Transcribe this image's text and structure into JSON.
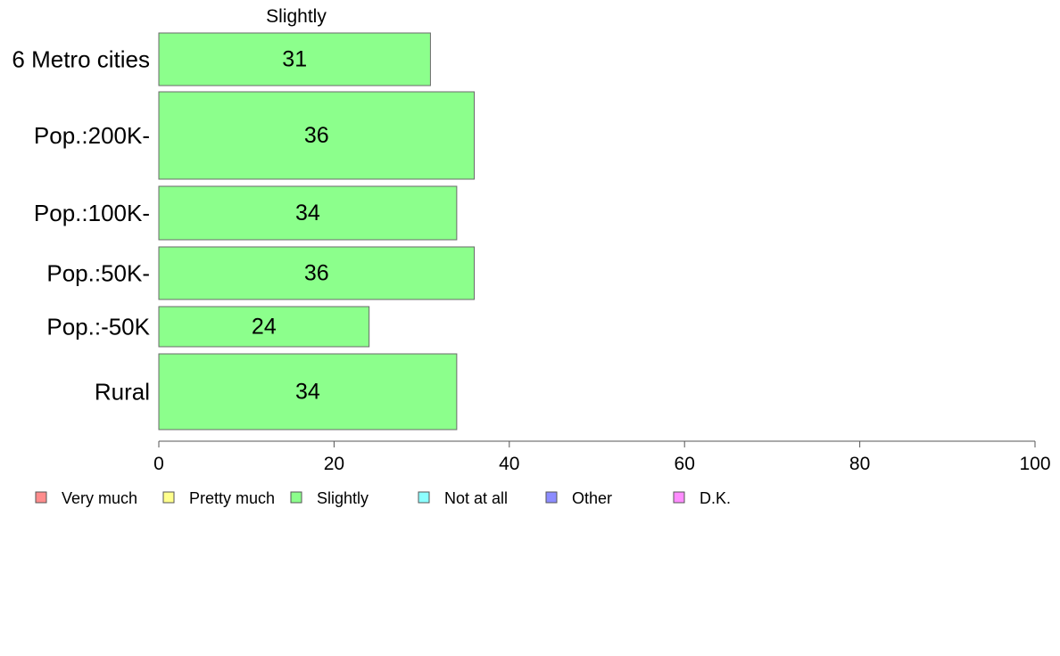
{
  "chart_data": {
    "type": "bar",
    "orientation": "horizontal",
    "title": "Slightly",
    "categories": [
      "6 Metro cities",
      "Pop.:200K-",
      "Pop.:100K-",
      "Pop.:50K-",
      "Pop.:-50K",
      "Rural"
    ],
    "values": [
      31,
      36,
      34,
      36,
      24,
      34
    ],
    "xlim": [
      0,
      100
    ],
    "x_ticks": [
      0,
      20,
      40,
      60,
      80,
      100
    ],
    "bar_color": "#8cff8c",
    "grid": false,
    "legend_position": "bottom",
    "legend": [
      {
        "label": "Very much",
        "color": "#ff8c8c"
      },
      {
        "label": "Pretty much",
        "color": "#ffff8c"
      },
      {
        "label": "Slightly",
        "color": "#8cff8c"
      },
      {
        "label": "Not at all",
        "color": "#8cffff"
      },
      {
        "label": "Other",
        "color": "#8c8cff"
      },
      {
        "label": "D.K.",
        "color": "#ff8cff"
      }
    ]
  }
}
